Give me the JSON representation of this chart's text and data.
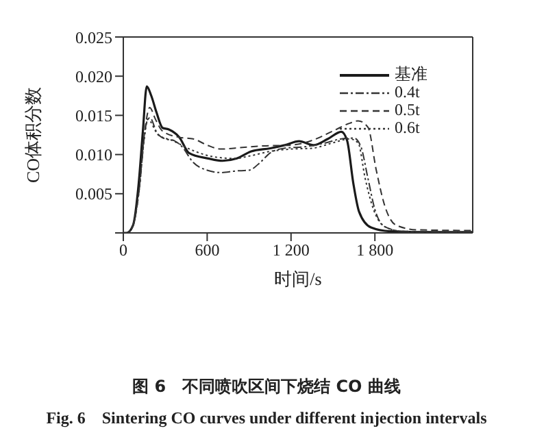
{
  "chart_data": {
    "type": "line",
    "xlabel": "时间/s",
    "ylabel": "CO体积分数",
    "xlim": [
      0,
      2500
    ],
    "xticks": [
      0,
      600,
      {
        "value": 1200,
        "label": "1 200"
      },
      {
        "value": 1800,
        "label": "1 800"
      }
    ],
    "ylim": [
      0,
      0.025
    ],
    "yticks": [
      {
        "value": 0,
        "label": null
      },
      {
        "value": 0.005,
        "label": "0.005"
      },
      {
        "value": 0.01,
        "label": "0.010"
      },
      {
        "value": 0.015,
        "label": "0.015"
      },
      {
        "value": 0.02,
        "label": "0.020"
      },
      {
        "value": 0.025,
        "label": "0.025"
      }
    ],
    "legend": "top right",
    "grid": false,
    "marker": "none",
    "annotations": [
      "图 6　不同喷吹区间下烧结 CO 曲线",
      "Fig. 6　Sintering CO curves under different injection intervals"
    ],
    "series": [
      {
        "name": "基准",
        "color": "#1a1a1a",
        "line_style": "solid",
        "x": [
          0,
          24,
          70,
          110,
          140,
          168,
          200,
          237,
          281,
          326,
          401,
          470,
          607,
          710,
          812,
          915,
          1052,
          1155,
          1258,
          1361,
          1464,
          1560,
          1601,
          1646,
          1687,
          1772,
          1910,
          2100,
          2500
        ],
        "values": [
          0,
          0,
          0.001,
          0.0063,
          0.013,
          0.0187,
          0.0175,
          0.0154,
          0.0134,
          0.0132,
          0.0122,
          0.0102,
          0.0095,
          0.0092,
          0.0095,
          0.0104,
          0.0108,
          0.0112,
          0.0117,
          0.0112,
          0.012,
          0.0129,
          0.0118,
          0.0063,
          0.0027,
          0.0007,
          0.0002,
          0.0001,
          0.0001
        ]
      },
      {
        "name": "0.4t",
        "color": "#333333",
        "line_style": "dashdot",
        "x": [
          0,
          24,
          70,
          110,
          165,
          190,
          240,
          300,
          360,
          420,
          500,
          600,
          700,
          800,
          900,
          980,
          1050,
          1150,
          1300,
          1450,
          1560,
          1650,
          1700,
          1750,
          1800,
          1870,
          2000,
          2500
        ],
        "values": [
          0,
          0,
          0.001,
          0.005,
          0.014,
          0.0147,
          0.0128,
          0.012,
          0.0118,
          0.011,
          0.009,
          0.008,
          0.0077,
          0.0079,
          0.008,
          0.009,
          0.0102,
          0.0108,
          0.011,
          0.0115,
          0.012,
          0.0121,
          0.011,
          0.007,
          0.003,
          0.0008,
          0.0002,
          0.0001
        ]
      },
      {
        "name": "0.5t",
        "color": "#333333",
        "line_style": "dashed",
        "x": [
          0,
          24,
          70,
          110,
          150,
          189,
          230,
          280,
          400,
          500,
          600,
          700,
          850,
          1000,
          1200,
          1350,
          1500,
          1620,
          1680,
          1750,
          1810,
          1870,
          1950,
          2100,
          2500
        ],
        "values": [
          0,
          0,
          0.001,
          0.005,
          0.0125,
          0.016,
          0.0145,
          0.013,
          0.0122,
          0.012,
          0.0112,
          0.0107,
          0.0109,
          0.0111,
          0.0112,
          0.0118,
          0.013,
          0.014,
          0.0143,
          0.0135,
          0.008,
          0.0035,
          0.001,
          0.0004,
          0.0003
        ]
      },
      {
        "name": "0.6t",
        "color": "#333333",
        "line_style": "dotted",
        "x": [
          0,
          24,
          70,
          110,
          150,
          175,
          250,
          350,
          500,
          650,
          800,
          900,
          1050,
          1200,
          1350,
          1500,
          1620,
          1680,
          1730,
          1790,
          1870,
          2000,
          2500
        ],
        "values": [
          0,
          0,
          0.001,
          0.005,
          0.012,
          0.0145,
          0.0125,
          0.0118,
          0.0105,
          0.0097,
          0.0095,
          0.0098,
          0.0104,
          0.0107,
          0.0108,
          0.0115,
          0.012,
          0.0115,
          0.007,
          0.003,
          0.0008,
          0.0002,
          0.0001
        ]
      }
    ]
  }
}
